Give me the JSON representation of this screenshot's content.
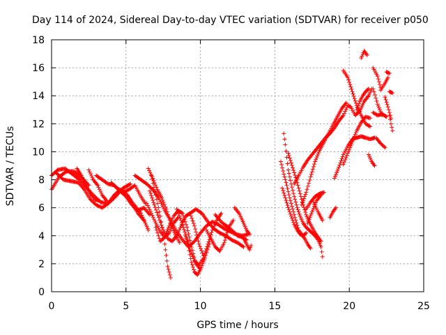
{
  "chart_data": {
    "type": "scatter",
    "title": "Day 114 of 2024, Sidereal Day-to-day VTEC variation (SDTVAR) for receiver p050",
    "xlabel": "GPS time / hours",
    "ylabel": "SDTVAR / TECUs",
    "xlim": [
      0,
      25
    ],
    "ylim": [
      0,
      18
    ],
    "xticks": [
      0,
      5,
      10,
      15,
      20,
      25
    ],
    "yticks": [
      0,
      2,
      4,
      6,
      8,
      10,
      12,
      14,
      16,
      18
    ],
    "grid": true,
    "marker": "+",
    "color": "#ff0000",
    "tracks": [
      [
        [
          0.0,
          8.3
        ],
        [
          0.4,
          8.7
        ],
        [
          0.9,
          8.8
        ],
        [
          1.4,
          8.4
        ],
        [
          1.9,
          8.0
        ],
        [
          2.3,
          7.5
        ],
        [
          2.8,
          6.9
        ],
        [
          3.3,
          6.4
        ],
        [
          3.8,
          6.3
        ],
        [
          4.3,
          6.8
        ],
        [
          4.8,
          7.4
        ],
        [
          5.3,
          7.7
        ]
      ],
      [
        [
          0.0,
          7.3
        ],
        [
          0.5,
          8.2
        ],
        [
          1.0,
          8.6
        ],
        [
          1.5,
          8.6
        ],
        [
          2.0,
          8.2
        ],
        [
          2.5,
          7.6
        ]
      ],
      [
        [
          0.3,
          8.5
        ],
        [
          0.8,
          8.0
        ],
        [
          1.3,
          7.9
        ],
        [
          1.8,
          7.8
        ],
        [
          2.2,
          7.3
        ],
        [
          2.6,
          6.6
        ],
        [
          3.0,
          6.2
        ],
        [
          3.4,
          6.0
        ],
        [
          3.8,
          6.3
        ],
        [
          4.2,
          6.9
        ],
        [
          4.6,
          7.3
        ],
        [
          5.0,
          7.0
        ],
        [
          5.4,
          6.3
        ],
        [
          5.8,
          5.6
        ],
        [
          6.2,
          5.1
        ]
      ],
      [
        [
          1.7,
          8.8
        ],
        [
          2.0,
          8.3
        ],
        [
          2.3,
          7.6
        ],
        [
          2.6,
          7.0
        ],
        [
          2.9,
          6.6
        ],
        [
          3.2,
          6.5
        ]
      ],
      [
        [
          2.5,
          8.7
        ],
        [
          2.8,
          8.0
        ],
        [
          3.1,
          7.6
        ],
        [
          3.4,
          6.9
        ],
        [
          3.7,
          6.5
        ]
      ],
      [
        [
          3.0,
          8.3
        ],
        [
          3.4,
          8.0
        ],
        [
          3.8,
          7.7
        ],
        [
          4.2,
          7.6
        ],
        [
          4.6,
          7.2
        ],
        [
          5.0,
          6.8
        ],
        [
          5.4,
          6.2
        ],
        [
          5.8,
          5.8
        ],
        [
          6.2,
          6.0
        ],
        [
          6.6,
          5.5
        ]
      ],
      [
        [
          4.0,
          7.8
        ],
        [
          4.4,
          7.4
        ],
        [
          4.8,
          7.1
        ],
        [
          5.2,
          7.3
        ],
        [
          5.6,
          7.6
        ],
        [
          6.0,
          6.8
        ],
        [
          6.3,
          6.3
        ]
      ],
      [
        [
          5.1,
          6.9
        ],
        [
          5.4,
          6.4
        ],
        [
          5.7,
          6.0
        ],
        [
          6.0,
          5.6
        ],
        [
          6.3,
          4.9
        ],
        [
          6.5,
          4.4
        ]
      ],
      [
        [
          5.6,
          8.3
        ],
        [
          6.0,
          8.0
        ],
        [
          6.4,
          7.7
        ],
        [
          6.8,
          7.3
        ],
        [
          7.2,
          6.7
        ],
        [
          7.6,
          5.8
        ],
        [
          8.0,
          5.1
        ],
        [
          8.4,
          4.3
        ],
        [
          8.8,
          3.7
        ],
        [
          9.2,
          3.2
        ],
        [
          9.6,
          3.6
        ],
        [
          10.0,
          4.2
        ],
        [
          10.4,
          4.7
        ],
        [
          10.8,
          5.0
        ],
        [
          11.2,
          4.8
        ],
        [
          11.6,
          4.5
        ],
        [
          12.0,
          4.3
        ],
        [
          12.4,
          4.1
        ],
        [
          12.8,
          4.0
        ],
        [
          13.2,
          4.1
        ]
      ],
      [
        [
          6.5,
          8.8
        ],
        [
          6.8,
          8.1
        ],
        [
          7.1,
          7.3
        ],
        [
          7.4,
          6.7
        ],
        [
          7.7,
          5.9
        ],
        [
          8.0,
          4.9
        ],
        [
          8.3,
          4.1
        ],
        [
          8.6,
          3.5
        ]
      ],
      [
        [
          6.6,
          7.2
        ],
        [
          6.9,
          6.2
        ],
        [
          7.2,
          5.3
        ],
        [
          7.5,
          4.4
        ],
        [
          7.8,
          3.8
        ],
        [
          8.1,
          3.6
        ],
        [
          8.4,
          4.0
        ],
        [
          8.7,
          4.7
        ],
        [
          9.0,
          5.4
        ],
        [
          9.3,
          5.6
        ],
        [
          9.6,
          4.7
        ],
        [
          9.9,
          3.4
        ],
        [
          10.2,
          2.6
        ]
      ],
      [
        [
          6.7,
          8.3
        ],
        [
          7.0,
          6.9
        ],
        [
          7.3,
          5.4
        ],
        [
          7.6,
          3.4
        ],
        [
          7.8,
          1.8
        ],
        [
          8.0,
          1.0
        ]
      ],
      [
        [
          6.4,
          6.3
        ],
        [
          6.7,
          5.6
        ],
        [
          7.0,
          4.9
        ],
        [
          7.3,
          4.3
        ],
        [
          7.6,
          3.9
        ],
        [
          7.9,
          4.2
        ],
        [
          8.2,
          4.9
        ],
        [
          8.5,
          5.3
        ]
      ],
      [
        [
          7.0,
          4.6
        ],
        [
          7.3,
          3.6
        ],
        [
          7.6,
          3.9
        ],
        [
          7.9,
          4.7
        ],
        [
          8.2,
          5.4
        ],
        [
          8.5,
          5.8
        ],
        [
          8.8,
          5.6
        ],
        [
          9.1,
          4.6
        ],
        [
          9.4,
          3.2
        ],
        [
          9.7,
          2.0
        ],
        [
          10.0,
          1.6
        ],
        [
          10.3,
          2.4
        ],
        [
          10.6,
          3.4
        ]
      ],
      [
        [
          8.4,
          5.9
        ],
        [
          8.7,
          5.1
        ],
        [
          9.0,
          4.1
        ],
        [
          9.3,
          3.0
        ],
        [
          9.6,
          2.2
        ],
        [
          9.9,
          1.9
        ],
        [
          10.2,
          2.4
        ],
        [
          10.5,
          3.4
        ],
        [
          10.8,
          4.4
        ],
        [
          11.1,
          5.1
        ],
        [
          11.4,
          5.6
        ]
      ],
      [
        [
          9.0,
          4.0
        ],
        [
          9.2,
          3.2
        ],
        [
          9.4,
          2.1
        ],
        [
          9.6,
          1.4
        ],
        [
          9.8,
          1.2
        ],
        [
          10.0,
          1.6
        ]
      ],
      [
        [
          9.3,
          5.6
        ],
        [
          9.7,
          5.9
        ],
        [
          10.1,
          5.6
        ],
        [
          10.5,
          5.0
        ],
        [
          10.9,
          4.5
        ],
        [
          11.3,
          4.2
        ],
        [
          11.7,
          4.0
        ],
        [
          12.1,
          3.7
        ],
        [
          12.5,
          3.5
        ],
        [
          12.9,
          3.2
        ]
      ],
      [
        [
          10.4,
          4.4
        ],
        [
          10.7,
          3.8
        ],
        [
          11.0,
          3.2
        ],
        [
          11.3,
          2.9
        ],
        [
          11.6,
          3.5
        ],
        [
          11.9,
          4.6
        ],
        [
          12.2,
          5.1
        ]
      ],
      [
        [
          11.0,
          5.5
        ],
        [
          11.3,
          5.1
        ],
        [
          11.6,
          4.8
        ],
        [
          11.9,
          4.6
        ],
        [
          12.2,
          4.3
        ],
        [
          12.5,
          4.0
        ],
        [
          12.8,
          3.9
        ],
        [
          13.1,
          3.7
        ]
      ],
      [
        [
          12.3,
          6.0
        ],
        [
          12.6,
          5.6
        ],
        [
          12.9,
          4.9
        ],
        [
          13.1,
          4.4
        ],
        [
          13.3,
          4.1
        ]
      ],
      [
        [
          12.9,
          3.8
        ],
        [
          13.1,
          3.4
        ],
        [
          13.3,
          3.0
        ],
        [
          13.4,
          3.3
        ]
      ],
      [
        [
          15.4,
          9.3
        ],
        [
          15.6,
          8.4
        ],
        [
          15.8,
          7.6
        ],
        [
          16.0,
          6.7
        ],
        [
          16.2,
          5.9
        ],
        [
          16.4,
          5.1
        ],
        [
          16.6,
          4.4
        ],
        [
          16.8,
          4.1
        ],
        [
          17.0,
          3.8
        ],
        [
          17.2,
          3.4
        ],
        [
          17.4,
          3.1
        ]
      ],
      [
        [
          15.5,
          7.4
        ],
        [
          15.7,
          6.7
        ],
        [
          15.9,
          6.0
        ],
        [
          16.1,
          5.4
        ],
        [
          16.3,
          4.8
        ],
        [
          16.5,
          4.4
        ],
        [
          16.7,
          4.1
        ],
        [
          16.9,
          4.0
        ],
        [
          17.1,
          4.2
        ]
      ],
      [
        [
          15.6,
          11.3
        ],
        [
          15.7,
          10.5
        ],
        [
          15.8,
          9.6
        ],
        [
          15.9,
          8.7
        ],
        [
          16.1,
          7.7
        ],
        [
          16.3,
          6.8
        ],
        [
          16.5,
          6.0
        ],
        [
          16.7,
          5.4
        ],
        [
          16.9,
          4.9
        ],
        [
          17.1,
          4.6
        ],
        [
          17.3,
          4.4
        ],
        [
          17.5,
          4.2
        ],
        [
          17.7,
          4.0
        ],
        [
          17.9,
          3.7
        ],
        [
          18.1,
          3.2
        ],
        [
          18.2,
          2.5
        ]
      ],
      [
        [
          15.9,
          9.9
        ],
        [
          16.1,
          9.2
        ],
        [
          16.3,
          8.5
        ],
        [
          16.5,
          7.8
        ],
        [
          16.7,
          7.0
        ],
        [
          16.9,
          6.2
        ],
        [
          17.1,
          5.5
        ],
        [
          17.3,
          5.0
        ],
        [
          17.5,
          4.6
        ],
        [
          17.7,
          4.2
        ],
        [
          17.9,
          3.9
        ],
        [
          18.1,
          3.6
        ]
      ],
      [
        [
          16.3,
          7.7
        ],
        [
          16.6,
          8.3
        ],
        [
          16.9,
          8.9
        ],
        [
          17.2,
          9.4
        ],
        [
          17.5,
          9.8
        ],
        [
          17.8,
          10.2
        ],
        [
          18.1,
          10.6
        ],
        [
          18.4,
          11.0
        ],
        [
          18.7,
          11.3
        ],
        [
          19.0,
          11.7
        ],
        [
          19.3,
          12.2
        ],
        [
          19.6,
          12.6
        ],
        [
          19.9,
          13.3
        ],
        [
          20.1,
          13.2
        ],
        [
          20.4,
          12.6
        ],
        [
          20.7,
          12.9
        ],
        [
          21.0,
          13.6
        ],
        [
          21.3,
          14.0
        ],
        [
          21.5,
          14.5
        ]
      ],
      [
        [
          16.8,
          6.2
        ],
        [
          17.1,
          7.1
        ],
        [
          17.4,
          8.2
        ],
        [
          17.7,
          9.3
        ],
        [
          18.0,
          10.1
        ],
        [
          18.3,
          10.7
        ],
        [
          18.6,
          11.3
        ],
        [
          18.9,
          11.9
        ],
        [
          19.2,
          12.5
        ],
        [
          19.5,
          13.1
        ],
        [
          19.8,
          13.5
        ]
      ],
      [
        [
          17.1,
          5.9
        ],
        [
          17.4,
          6.4
        ],
        [
          17.7,
          6.8
        ],
        [
          18.0,
          7.0
        ],
        [
          18.3,
          7.1
        ]
      ],
      [
        [
          17.6,
          6.4
        ],
        [
          17.9,
          5.7
        ],
        [
          18.2,
          5.1
        ]
      ],
      [
        [
          17.2,
          4.9
        ],
        [
          17.5,
          5.7
        ],
        [
          17.8,
          6.5
        ],
        [
          18.1,
          6.9
        ]
      ],
      [
        [
          18.7,
          5.3
        ],
        [
          18.9,
          5.7
        ],
        [
          19.1,
          6.0
        ]
      ],
      [
        [
          19.0,
          8.1
        ],
        [
          19.3,
          8.9
        ],
        [
          19.6,
          9.8
        ],
        [
          19.9,
          10.4
        ],
        [
          20.2,
          10.9
        ],
        [
          20.5,
          11.0
        ],
        [
          20.8,
          11.1
        ],
        [
          21.1,
          11.0
        ],
        [
          21.4,
          10.9
        ],
        [
          21.7,
          11.0
        ]
      ],
      [
        [
          19.6,
          9.1
        ],
        [
          19.9,
          9.9
        ],
        [
          20.2,
          10.7
        ],
        [
          20.5,
          11.5
        ],
        [
          20.8,
          12.1
        ],
        [
          21.1,
          12.5
        ],
        [
          21.4,
          12.4
        ]
      ],
      [
        [
          19.6,
          15.8
        ],
        [
          19.9,
          15.3
        ],
        [
          20.2,
          14.3
        ],
        [
          20.5,
          13.3
        ],
        [
          20.8,
          12.6
        ],
        [
          21.1,
          12.0
        ],
        [
          21.4,
          11.8
        ]
      ],
      [
        [
          20.5,
          13.0
        ],
        [
          20.7,
          13.6
        ],
        [
          20.9,
          14.0
        ],
        [
          21.1,
          14.3
        ],
        [
          21.3,
          14.5
        ]
      ],
      [
        [
          20.8,
          16.7
        ],
        [
          21.0,
          17.2
        ],
        [
          21.2,
          16.9
        ]
      ],
      [
        [
          21.6,
          16.0
        ],
        [
          21.9,
          15.4
        ],
        [
          22.1,
          14.6
        ]
      ],
      [
        [
          21.3,
          9.8
        ],
        [
          21.5,
          9.3
        ],
        [
          21.7,
          9.0
        ]
      ],
      [
        [
          21.6,
          14.5
        ],
        [
          21.9,
          13.4
        ],
        [
          22.2,
          12.6
        ]
      ],
      [
        [
          21.6,
          12.8
        ],
        [
          21.9,
          12.6
        ],
        [
          22.2,
          12.7
        ],
        [
          22.5,
          12.5
        ]
      ],
      [
        [
          21.8,
          11.0
        ],
        [
          22.1,
          10.6
        ],
        [
          22.4,
          10.3
        ]
      ],
      [
        [
          22.1,
          14.4
        ],
        [
          22.4,
          14.9
        ],
        [
          22.6,
          15.3
        ]
      ],
      [
        [
          22.4,
          13.9
        ],
        [
          22.6,
          13.2
        ],
        [
          22.8,
          12.4
        ]
      ],
      [
        [
          22.5,
          15.7
        ],
        [
          22.7,
          15.6
        ]
      ],
      [
        [
          22.7,
          12.6
        ],
        [
          22.8,
          12.0
        ],
        [
          22.9,
          11.5
        ]
      ],
      [
        [
          22.7,
          14.3
        ],
        [
          22.9,
          14.2
        ]
      ]
    ]
  }
}
